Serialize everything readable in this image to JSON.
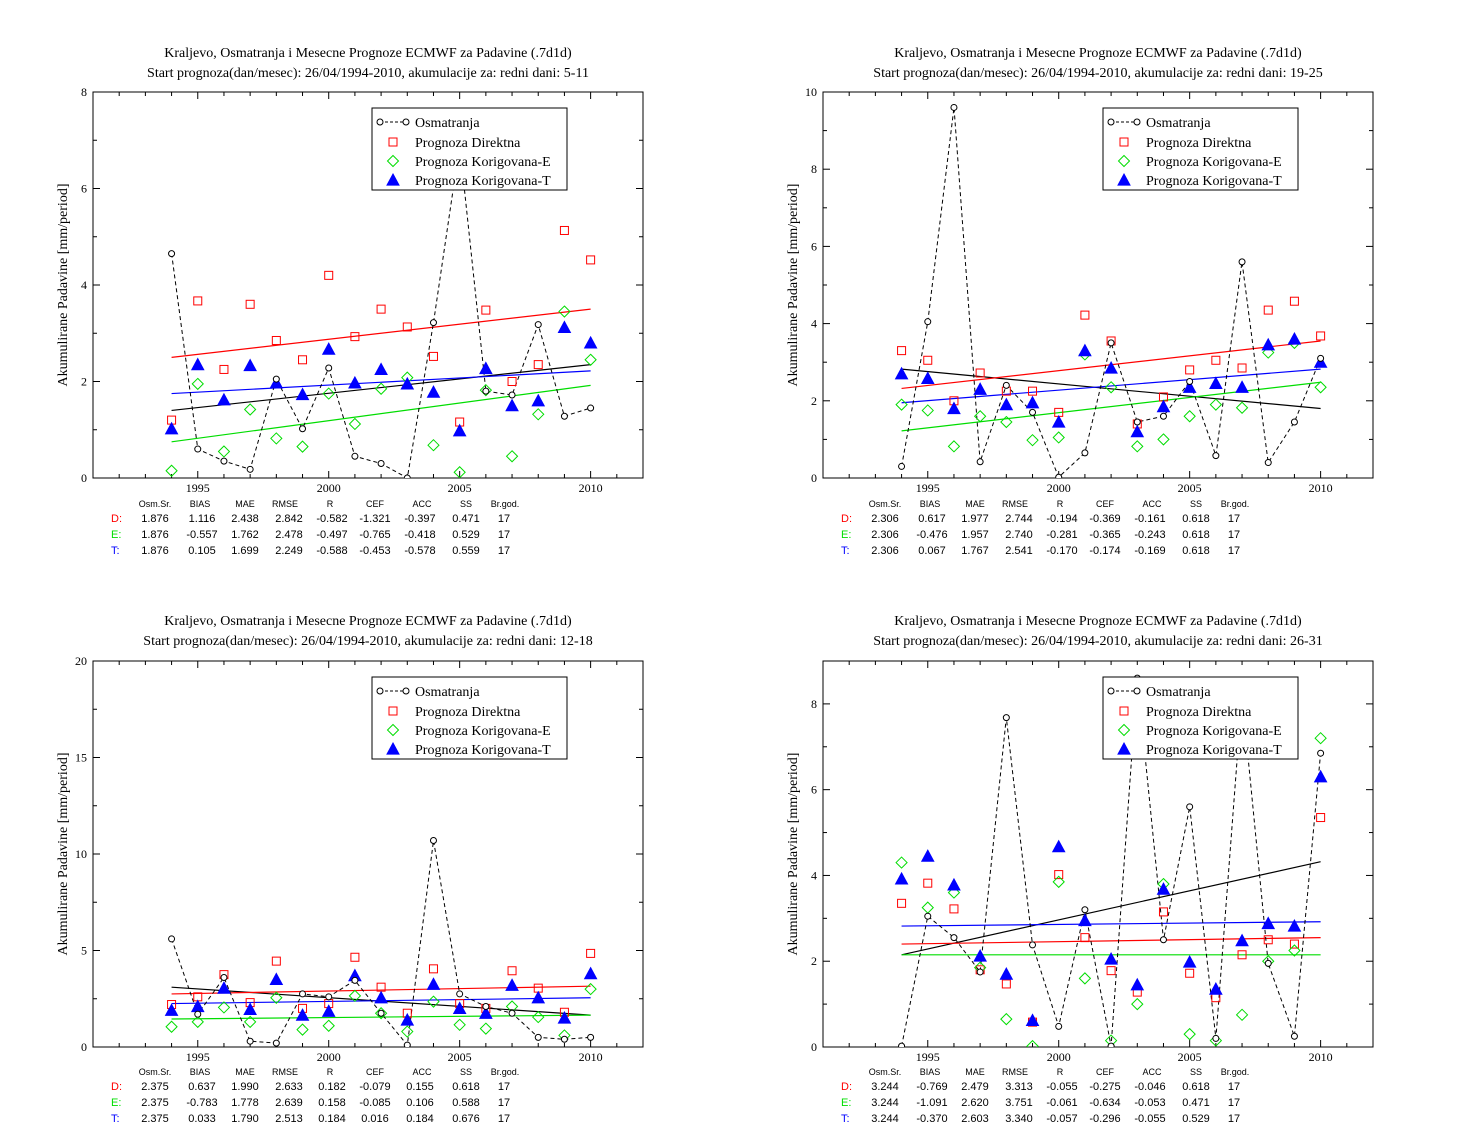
{
  "colors": {
    "obs": "#000000",
    "D": "#ff0000",
    "E": "#00dd00",
    "T": "#0000ff"
  },
  "stats_headers": [
    "Osm.Sr.",
    "BIAS",
    "MAE",
    "RMSE",
    "R",
    "CEF",
    "ACC",
    "SS",
    "Br.god."
  ],
  "chart_data": [
    {
      "type": "scatter",
      "title": "Kraljevo, Osmatranja i Mesecne Prognoze ECMWF za Padavine (.7d1d)",
      "subtitle": "Start prognoza(dan/mesec): 26/04/1994-2010, akumulacije za: redni dani: 5-11",
      "ylabel": "Akumulirane Padavine [mm/period]",
      "xlim": [
        1991,
        2012
      ],
      "ylim": [
        0,
        8
      ],
      "xticks": [
        1995,
        2000,
        2005,
        2010
      ],
      "yticks": [
        0,
        2,
        4,
        6,
        8
      ],
      "x": [
        1994,
        1995,
        1996,
        1997,
        1998,
        1999,
        2000,
        2001,
        2002,
        2003,
        2004,
        2005,
        2006,
        2007,
        2008,
        2009,
        2010
      ],
      "legend": [
        "Osmatranja",
        "Prognoza Direktna",
        "Prognoza Korigovana-E",
        "Prognoza Korigovana-T"
      ],
      "series": [
        {
          "name": "Osmatranja",
          "values": [
            4.65,
            0.6,
            0.35,
            0.18,
            2.05,
            1.02,
            2.28,
            0.45,
            0.3,
            0.0,
            3.22,
            6.9,
            1.8,
            1.72,
            3.18,
            1.28,
            1.45
          ]
        },
        {
          "name": "Prognoza Direktna",
          "values": [
            1.2,
            3.67,
            2.25,
            3.6,
            2.85,
            2.45,
            4.2,
            2.93,
            3.5,
            3.13,
            2.52,
            1.16,
            3.48,
            2.0,
            2.35,
            5.13,
            4.52
          ]
        },
        {
          "name": "Prognoza Korigovana-E",
          "values": [
            0.15,
            1.95,
            0.55,
            1.42,
            0.82,
            0.65,
            1.75,
            1.12,
            1.85,
            2.08,
            0.68,
            0.12,
            1.82,
            0.45,
            1.32,
            3.45,
            2.45
          ]
        },
        {
          "name": "Prognoza Korigovana-T",
          "values": [
            1.02,
            2.35,
            1.62,
            2.33,
            1.97,
            1.73,
            2.67,
            1.97,
            2.25,
            1.95,
            1.78,
            0.98,
            2.27,
            1.5,
            1.6,
            3.12,
            2.8
          ]
        }
      ],
      "trend_lines": {
        "obs": [
          1.4,
          2.35
        ],
        "D": [
          2.5,
          3.5
        ],
        "E": [
          0.75,
          1.92
        ],
        "T": [
          1.75,
          2.22
        ]
      },
      "stats": [
        {
          "label": "D:",
          "values": [
            "1.876",
            "1.116",
            "2.438",
            "2.842",
            "-0.582",
            "-1.321",
            "-0.397",
            "0.471",
            "17"
          ]
        },
        {
          "label": "E:",
          "values": [
            "1.876",
            "-0.557",
            "1.762",
            "2.478",
            "-0.497",
            "-0.765",
            "-0.418",
            "0.529",
            "17"
          ]
        },
        {
          "label": "T:",
          "values": [
            "1.876",
            "0.105",
            "1.699",
            "2.249",
            "-0.588",
            "-0.453",
            "-0.578",
            "0.559",
            "17"
          ]
        }
      ]
    },
    {
      "type": "scatter",
      "title": "Kraljevo, Osmatranja i Mesecne Prognoze ECMWF za Padavine (.7d1d)",
      "subtitle": "Start prognoza(dan/mesec): 26/04/1994-2010, akumulacije za: redni dani: 19-25",
      "ylabel": "Akumulirane Padavine [mm/period]",
      "xlim": [
        1991,
        2012
      ],
      "ylim": [
        0,
        10
      ],
      "xticks": [
        1995,
        2000,
        2005,
        2010
      ],
      "yticks": [
        0,
        2,
        4,
        6,
        8,
        10
      ],
      "x": [
        1994,
        1995,
        1996,
        1997,
        1998,
        1999,
        2000,
        2001,
        2002,
        2003,
        2004,
        2005,
        2006,
        2007,
        2008,
        2009,
        2010
      ],
      "legend": [
        "Osmatranja",
        "Prognoza Direktna",
        "Prognoza Korigovana-E",
        "Prognoza Korigovana-T"
      ],
      "series": [
        {
          "name": "Osmatranja",
          "values": [
            0.3,
            4.05,
            9.6,
            0.42,
            2.4,
            1.7,
            0.02,
            0.65,
            3.5,
            1.45,
            1.6,
            2.5,
            0.58,
            5.6,
            0.4,
            1.45,
            3.1
          ]
        },
        {
          "name": "Prognoza Direktna",
          "values": [
            3.3,
            3.05,
            2.0,
            2.72,
            2.25,
            2.25,
            1.7,
            4.22,
            3.55,
            1.4,
            2.1,
            2.8,
            3.05,
            2.85,
            4.35,
            4.58,
            3.68
          ]
        },
        {
          "name": "Prognoza Korigovana-E",
          "values": [
            1.9,
            1.75,
            0.82,
            1.6,
            1.45,
            0.98,
            1.05,
            3.2,
            2.35,
            0.82,
            1.0,
            1.6,
            1.9,
            1.82,
            3.25,
            3.5,
            2.35
          ]
        },
        {
          "name": "Prognoza Korigovana-T",
          "values": [
            2.7,
            2.58,
            1.8,
            2.3,
            1.9,
            1.95,
            1.45,
            3.3,
            2.85,
            1.2,
            1.85,
            2.35,
            2.45,
            2.35,
            3.45,
            3.6,
            3.0
          ]
        }
      ],
      "trend_lines": {
        "obs": [
          2.82,
          1.8
        ],
        "D": [
          2.32,
          3.55
        ],
        "E": [
          1.22,
          2.48
        ],
        "T": [
          1.95,
          2.82
        ]
      },
      "stats": [
        {
          "label": "D:",
          "values": [
            "2.306",
            "0.617",
            "1.977",
            "2.744",
            "-0.194",
            "-0.369",
            "-0.161",
            "0.618",
            "17"
          ]
        },
        {
          "label": "E:",
          "values": [
            "2.306",
            "-0.476",
            "1.957",
            "2.740",
            "-0.281",
            "-0.365",
            "-0.243",
            "0.618",
            "17"
          ]
        },
        {
          "label": "T:",
          "values": [
            "2.306",
            "0.067",
            "1.767",
            "2.541",
            "-0.170",
            "-0.174",
            "-0.169",
            "0.618",
            "17"
          ]
        }
      ]
    },
    {
      "type": "scatter",
      "title": "Kraljevo, Osmatranja i Mesecne Prognoze ECMWF za Padavine (.7d1d)",
      "subtitle": "Start prognoza(dan/mesec): 26/04/1994-2010, akumulacije za: redni dani: 12-18",
      "ylabel": "Akumulirane Padavine [mm/period]",
      "xlim": [
        1991,
        2012
      ],
      "ylim": [
        0,
        20
      ],
      "xticks": [
        1995,
        2000,
        2005,
        2010
      ],
      "yticks": [
        0,
        5,
        10,
        15,
        20
      ],
      "x": [
        1994,
        1995,
        1996,
        1997,
        1998,
        1999,
        2000,
        2001,
        2002,
        2003,
        2004,
        2005,
        2006,
        2007,
        2008,
        2009,
        2010
      ],
      "legend": [
        "Osmatranja",
        "Prognoza Direktna",
        "Prognoza Korigovana-E",
        "Prognoza Korigovana-T"
      ],
      "series": [
        {
          "name": "Osmatranja",
          "values": [
            5.6,
            1.7,
            3.6,
            0.3,
            0.2,
            2.75,
            2.6,
            3.45,
            1.75,
            0.1,
            10.7,
            2.75,
            2.1,
            1.75,
            0.5,
            0.4,
            0.5
          ]
        },
        {
          "name": "Prognoza Direktna",
          "values": [
            2.2,
            2.6,
            3.75,
            2.3,
            4.45,
            2.0,
            2.25,
            4.65,
            3.1,
            1.75,
            4.05,
            2.25,
            2.0,
            3.95,
            3.05,
            1.8,
            4.85
          ]
        },
        {
          "name": "Prognoza Korigovana-E",
          "values": [
            1.05,
            1.3,
            2.05,
            1.3,
            2.55,
            0.9,
            1.1,
            2.65,
            1.75,
            0.8,
            2.35,
            1.15,
            0.95,
            2.1,
            1.55,
            0.6,
            3.0
          ]
        },
        {
          "name": "Prognoza Korigovana-T",
          "values": [
            1.9,
            2.1,
            3.05,
            1.95,
            3.5,
            1.65,
            1.85,
            3.7,
            2.55,
            1.4,
            3.25,
            2.0,
            1.75,
            3.2,
            2.55,
            1.5,
            3.8
          ]
        }
      ],
      "trend_lines": {
        "obs": [
          3.1,
          1.65
        ],
        "D": [
          2.75,
          3.15
        ],
        "E": [
          1.45,
          1.65
        ],
        "T": [
          2.25,
          2.55
        ]
      },
      "stats": [
        {
          "label": "D:",
          "values": [
            "2.375",
            "0.637",
            "1.990",
            "2.633",
            "0.182",
            "-0.079",
            "0.155",
            "0.618",
            "17"
          ]
        },
        {
          "label": "E:",
          "values": [
            "2.375",
            "-0.783",
            "1.778",
            "2.639",
            "0.158",
            "-0.085",
            "0.106",
            "0.588",
            "17"
          ]
        },
        {
          "label": "T:",
          "values": [
            "2.375",
            "0.033",
            "1.790",
            "2.513",
            "0.184",
            "0.016",
            "0.184",
            "0.676",
            "17"
          ]
        }
      ]
    },
    {
      "type": "scatter",
      "title": "Kraljevo, Osmatranja i Mesecne Prognoze ECMWF za Padavine (.7d1d)",
      "subtitle": "Start prognoza(dan/mesec): 26/04/1994-2010, akumulacije za: redni dani: 26-31",
      "ylabel": "Akumulirane Padavine [mm/period]",
      "xlim": [
        1991,
        2012
      ],
      "ylim": [
        0,
        9
      ],
      "xticks": [
        1995,
        2000,
        2005,
        2010
      ],
      "yticks": [
        0,
        2,
        4,
        6,
        8
      ],
      "x": [
        1994,
        1995,
        1996,
        1997,
        1998,
        1999,
        2000,
        2001,
        2002,
        2003,
        2004,
        2005,
        2006,
        2007,
        2008,
        2009,
        2010
      ],
      "legend": [
        "Osmatranja",
        "Prognoza Direktna",
        "Prognoza Korigovana-E",
        "Prognoza Korigovana-T"
      ],
      "series": [
        {
          "name": "Osmatranja",
          "values": [
            0.02,
            3.05,
            2.55,
            1.75,
            7.68,
            2.38,
            0.48,
            3.2,
            0.02,
            8.6,
            2.5,
            5.6,
            0.2,
            8.2,
            1.95,
            0.25,
            6.85
          ]
        },
        {
          "name": "Prognoza Direktna",
          "values": [
            3.35,
            3.82,
            3.22,
            1.8,
            1.47,
            0.58,
            4.02,
            2.55,
            1.78,
            1.28,
            3.15,
            1.72,
            1.15,
            2.15,
            2.5,
            2.4,
            5.35
          ]
        },
        {
          "name": "Prognoza Korigovana-E",
          "values": [
            4.3,
            3.25,
            3.6,
            1.85,
            0.65,
            0.02,
            3.85,
            1.6,
            0.15,
            1.0,
            3.8,
            0.3,
            0.15,
            0.75,
            2.0,
            2.25,
            7.2
          ]
        },
        {
          "name": "Prognoza Korigovana-T",
          "values": [
            3.92,
            4.45,
            3.78,
            2.12,
            1.7,
            0.62,
            4.67,
            2.95,
            2.05,
            1.45,
            3.68,
            1.98,
            1.35,
            2.48,
            2.88,
            2.82,
            6.3
          ]
        }
      ],
      "trend_lines": {
        "obs": [
          2.15,
          4.32
        ],
        "D": [
          2.4,
          2.55
        ],
        "E": [
          2.15,
          2.15
        ],
        "T": [
          2.82,
          2.92
        ]
      },
      "stats": [
        {
          "label": "D:",
          "values": [
            "3.244",
            "-0.769",
            "2.479",
            "3.313",
            "-0.055",
            "-0.275",
            "-0.046",
            "0.618",
            "17"
          ]
        },
        {
          "label": "E:",
          "values": [
            "3.244",
            "-1.091",
            "2.620",
            "3.751",
            "-0.061",
            "-0.634",
            "-0.053",
            "0.471",
            "17"
          ]
        },
        {
          "label": "T:",
          "values": [
            "3.244",
            "-0.370",
            "2.603",
            "3.340",
            "-0.057",
            "-0.296",
            "-0.055",
            "0.529",
            "17"
          ]
        }
      ]
    }
  ]
}
